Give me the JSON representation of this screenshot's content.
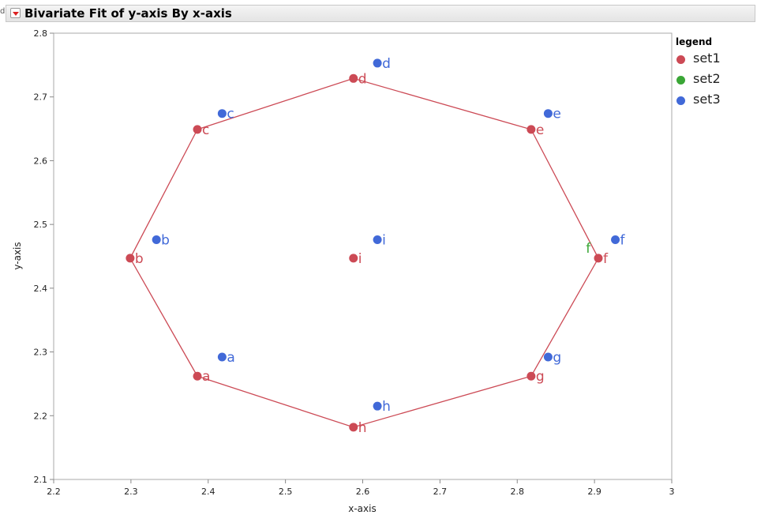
{
  "header": {
    "title": "Bivariate Fit of y-axis By x-axis",
    "outline_mark": "d"
  },
  "legend": {
    "title": "legend",
    "items": [
      {
        "label": "set1",
        "color": "#cc4a55"
      },
      {
        "label": "set2",
        "color": "#3aa636"
      },
      {
        "label": "set3",
        "color": "#4169d8"
      }
    ]
  },
  "chart_data": {
    "type": "scatter",
    "xlabel": "x-axis",
    "ylabel": "y-axis",
    "xlim": [
      2.2,
      3.0
    ],
    "ylim": [
      2.1,
      2.8
    ],
    "x_ticks": [
      "2.2",
      "2.3",
      "2.4",
      "2.5",
      "2.6",
      "2.7",
      "2.8",
      "2.9",
      "3"
    ],
    "y_ticks": [
      "2.1",
      "2.2",
      "2.3",
      "2.4",
      "2.5",
      "2.6",
      "2.7",
      "2.8"
    ],
    "grid": false,
    "legend_position": "right",
    "series": [
      {
        "name": "set1",
        "color": "#cc4a55",
        "connected": true,
        "points": [
          {
            "label": "a",
            "x": 2.386,
            "y": 2.262
          },
          {
            "label": "b",
            "x": 2.299,
            "y": 2.447
          },
          {
            "label": "c",
            "x": 2.386,
            "y": 2.649
          },
          {
            "label": "d",
            "x": 2.588,
            "y": 2.729
          },
          {
            "label": "e",
            "x": 2.818,
            "y": 2.649
          },
          {
            "label": "f",
            "x": 2.905,
            "y": 2.447
          },
          {
            "label": "g",
            "x": 2.818,
            "y": 2.262
          },
          {
            "label": "h",
            "x": 2.588,
            "y": 2.182
          },
          {
            "label": "i",
            "x": 2.588,
            "y": 2.447
          }
        ],
        "path_order": [
          "a",
          "b",
          "c",
          "d",
          "e",
          "f",
          "g",
          "h",
          "a"
        ]
      },
      {
        "name": "set2",
        "color": "#3aa636",
        "connected": false,
        "points": [
          {
            "label": "f",
            "x": 2.893,
            "y": 2.462,
            "label_only": true
          }
        ]
      },
      {
        "name": "set3",
        "color": "#4169d8",
        "connected": false,
        "points": [
          {
            "label": "a",
            "x": 2.418,
            "y": 2.292
          },
          {
            "label": "b",
            "x": 2.333,
            "y": 2.476
          },
          {
            "label": "c",
            "x": 2.418,
            "y": 2.674
          },
          {
            "label": "d",
            "x": 2.619,
            "y": 2.753
          },
          {
            "label": "e",
            "x": 2.84,
            "y": 2.674
          },
          {
            "label": "f",
            "x": 2.927,
            "y": 2.476
          },
          {
            "label": "g",
            "x": 2.84,
            "y": 2.292
          },
          {
            "label": "h",
            "x": 2.619,
            "y": 2.215
          },
          {
            "label": "i",
            "x": 2.619,
            "y": 2.476
          }
        ]
      }
    ]
  }
}
